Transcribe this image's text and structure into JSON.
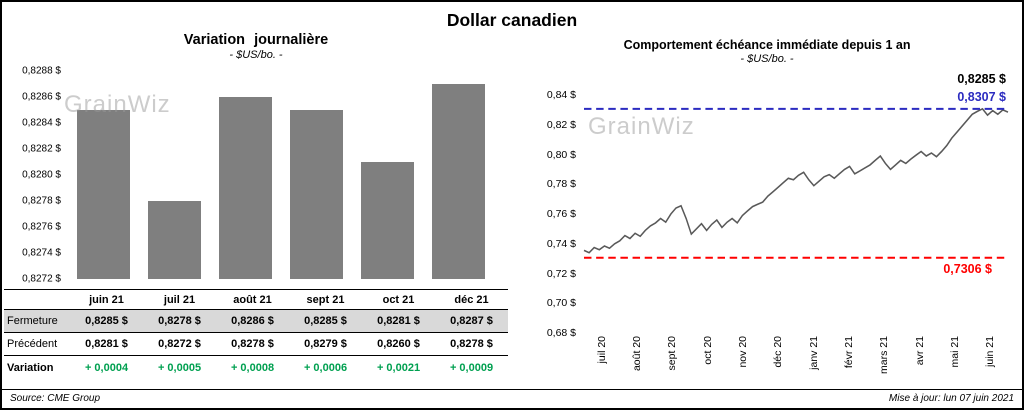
{
  "title": "Dollar canadien",
  "watermark": "GrainWiz",
  "footer": {
    "source": "Source: CME Group",
    "updated": "Mise à jour: lun 07 juin 2021"
  },
  "colors": {
    "bar": "#7f7f7f",
    "line": "#595959",
    "blue_reference": "#2b2bc0",
    "red_reference": "#ff0000",
    "variation_green": "#00a050",
    "table_band_gray": "#d9d9d9"
  },
  "chart_data": [
    {
      "type": "bar",
      "title": "Variation journalière",
      "subtitle": "- $US/bo. -",
      "categories": [
        "juin 21",
        "juil 21",
        "août 21",
        "sept 21",
        "oct 21",
        "déc 21"
      ],
      "values": [
        0.8285,
        0.8278,
        0.8286,
        0.8285,
        0.8281,
        0.8287
      ],
      "ylim": [
        0.8272,
        0.8288
      ],
      "y_tick_labels": [
        "0,8288 $",
        "0,8286 $",
        "0,8284 $",
        "0,8282 $",
        "0,8280 $",
        "0,8278 $",
        "0,8276 $",
        "0,8274 $",
        "0,8272 $"
      ],
      "table": {
        "rows": [
          {
            "label": "Fermeture",
            "values": [
              "0,8285 $",
              "0,8278 $",
              "0,8286 $",
              "0,8285 $",
              "0,8281 $",
              "0,8287 $"
            ]
          },
          {
            "label": "Précédent",
            "values": [
              "0,8281 $",
              "0,8272 $",
              "0,8278 $",
              "0,8279 $",
              "0,8260 $",
              "0,8278 $"
            ]
          },
          {
            "label": "Variation",
            "values": [
              "+ 0,0004",
              "+ 0,0005",
              "+ 0,0008",
              "+ 0,0006",
              "+ 0,0021",
              "+ 0,0009"
            ]
          }
        ]
      }
    },
    {
      "type": "line",
      "title": "Comportement échéance immédiate depuis 1 an",
      "subtitle": "- $US/bo. -",
      "ylim": [
        0.68,
        0.84
      ],
      "y_tick_labels": [
        "0,84 $",
        "0,82 $",
        "0,80 $",
        "0,78 $",
        "0,76 $",
        "0,74 $",
        "0,72 $",
        "0,70 $",
        "0,68 $"
      ],
      "x_tick_labels": [
        "juil 20",
        "août 20",
        "sept 20",
        "oct 20",
        "nov 20",
        "déc 20",
        "janv 21",
        "févr 21",
        "mars 21",
        "avr 21",
        "mai 21",
        "juin 21"
      ],
      "series": [
        {
          "name": "échéance immédiate",
          "values": [
            0.7355,
            0.734,
            0.7375,
            0.736,
            0.7385,
            0.737,
            0.74,
            0.742,
            0.7455,
            0.7435,
            0.747,
            0.745,
            0.749,
            0.752,
            0.754,
            0.757,
            0.7545,
            0.76,
            0.764,
            0.7655,
            0.757,
            0.7465,
            0.75,
            0.7535,
            0.749,
            0.753,
            0.756,
            0.751,
            0.7545,
            0.757,
            0.754,
            0.759,
            0.762,
            0.765,
            0.7665,
            0.768,
            0.772,
            0.775,
            0.778,
            0.781,
            0.784,
            0.783,
            0.786,
            0.788,
            0.783,
            0.779,
            0.782,
            0.785,
            0.7865,
            0.784,
            0.787,
            0.79,
            0.792,
            0.787,
            0.789,
            0.791,
            0.793,
            0.796,
            0.799,
            0.794,
            0.79,
            0.793,
            0.796,
            0.794,
            0.797,
            0.7995,
            0.802,
            0.799,
            0.801,
            0.7985,
            0.802,
            0.806,
            0.811,
            0.815,
            0.819,
            0.823,
            0.827,
            0.829,
            0.8307,
            0.8265,
            0.8295,
            0.827,
            0.83,
            0.8285
          ]
        }
      ],
      "reference_lines": [
        {
          "label": "0,8307 $",
          "value": 0.8307,
          "color": "#2b2bc0",
          "position": "above"
        },
        {
          "label": "0,7306 $",
          "value": 0.7306,
          "color": "#ff0000",
          "position": "below"
        }
      ],
      "last_value": {
        "label": "0,8285 $",
        "color": "#000000"
      }
    }
  ]
}
